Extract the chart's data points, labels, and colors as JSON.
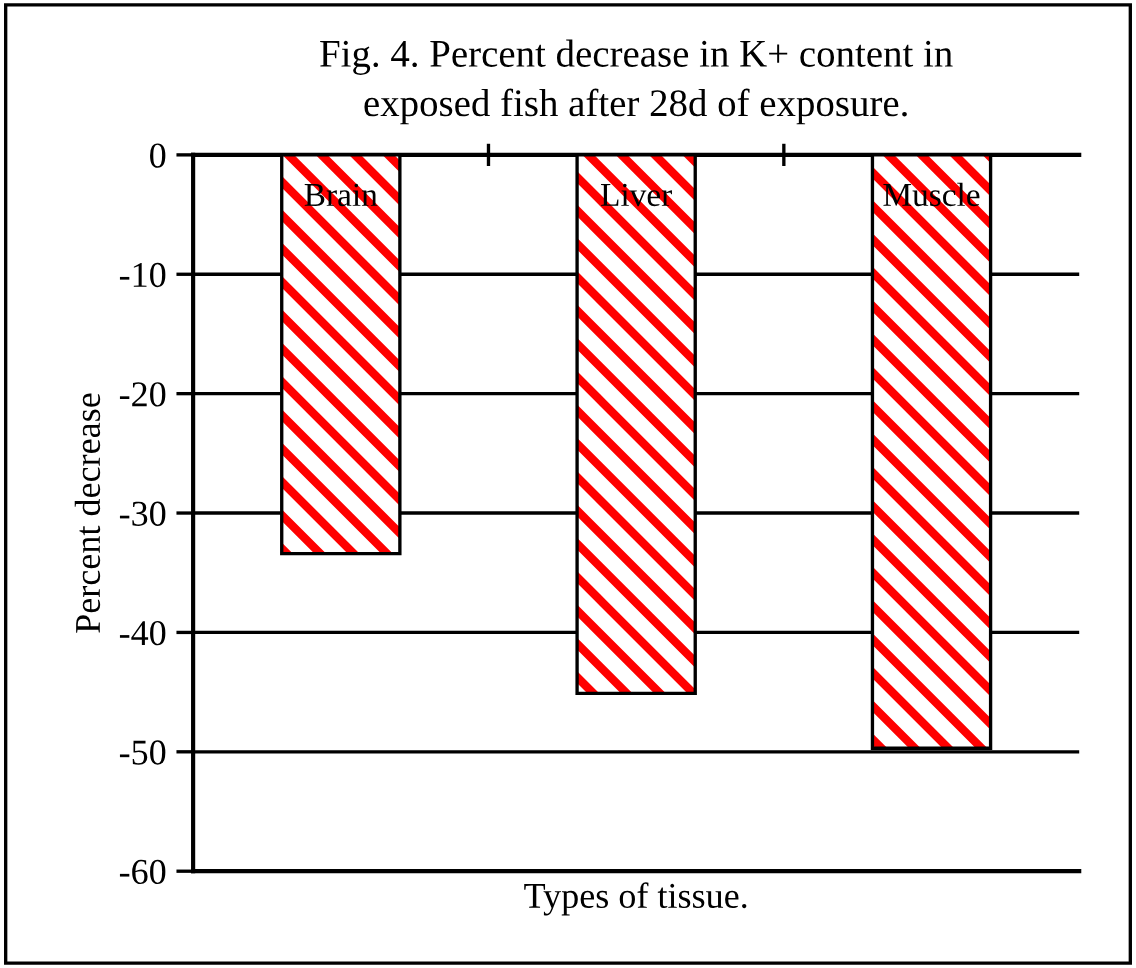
{
  "chart_data": {
    "type": "bar",
    "title": "Fig. 4. Percent decrease in K+ content in\nexposed fish after 28d of exposure.",
    "xlabel": "Types of tissue.",
    "ylabel": "Percent decrease",
    "categories": [
      "Brain",
      "Liver",
      "Muscle"
    ],
    "values": [
      -33.4,
      -45.1,
      -49.7
    ],
    "color": "#ff0000",
    "ylim": [
      -60,
      0
    ],
    "yticks": [
      -60,
      -50,
      -40,
      -30,
      -20,
      -10,
      0
    ],
    "grid": "y"
  }
}
